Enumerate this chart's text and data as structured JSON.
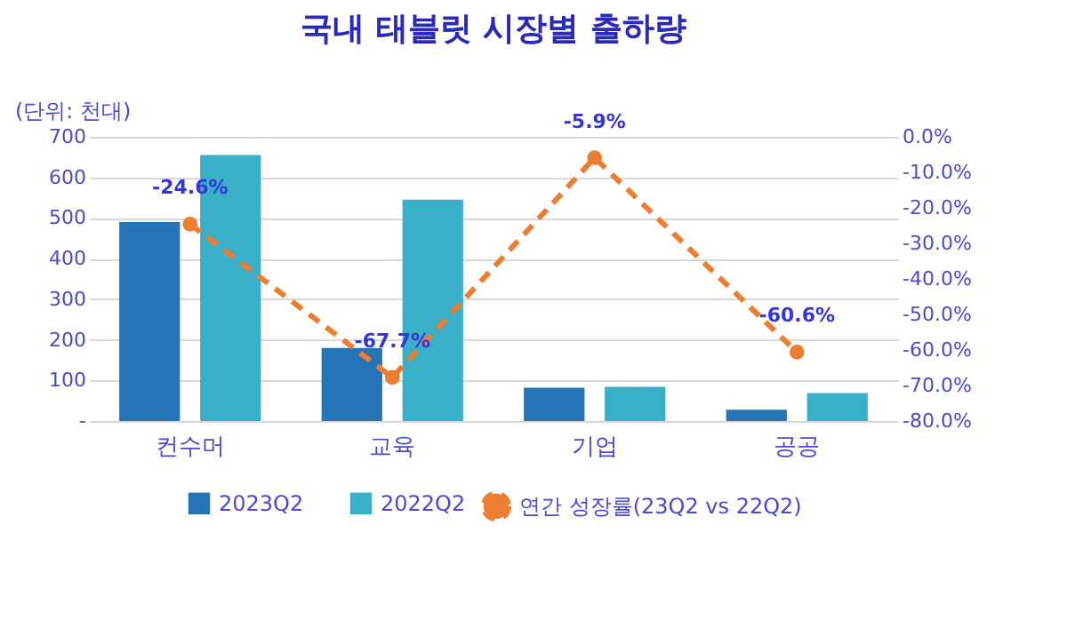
{
  "chart_data": {
    "type": "bar",
    "title": "국내 태블릿 시장별 출하량",
    "ylabel": "(단위: 천대)",
    "categories": [
      "컨수머",
      "교육",
      "기업",
      "공공"
    ],
    "series": [
      {
        "name": "2023Q2",
        "color": "#2474b6",
        "values": [
          490,
          180,
          82,
          28
        ]
      },
      {
        "name": "2022Q2",
        "color": "#3aafc8",
        "values": [
          655,
          545,
          84,
          69
        ]
      },
      {
        "name": "연간 성장률(23Q2 vs 22Q2)",
        "type": "line",
        "axis": "y2",
        "color": "#ed7d31",
        "values": [
          -24.6,
          -67.7,
          -5.9,
          -60.6
        ],
        "value_labels": [
          "-24.6%",
          "-67.7%",
          "-5.9%",
          "-60.6%"
        ]
      }
    ],
    "ylim": [
      0,
      700
    ],
    "yticks": [
      {
        "value": 0,
        "label": "-"
      },
      100,
      200,
      300,
      400,
      500,
      600,
      700
    ],
    "y2lim": [
      -80,
      0
    ],
    "y2ticks": [
      {
        "value": 0,
        "label": "0.0%"
      },
      {
        "value": -10,
        "label": "-10.0%"
      },
      {
        "value": -20,
        "label": "-20.0%"
      },
      {
        "value": -30,
        "label": "-30.0%"
      },
      {
        "value": -40,
        "label": "-40.0%"
      },
      {
        "value": -50,
        "label": "-50.0%"
      },
      {
        "value": -60,
        "label": "-60.0%"
      },
      {
        "value": -70,
        "label": "-70.0%"
      },
      {
        "value": -80,
        "label": "-80.0%"
      }
    ],
    "grid": "y",
    "legend": "bottom",
    "marker": "circle",
    "line_style": "dashed"
  }
}
